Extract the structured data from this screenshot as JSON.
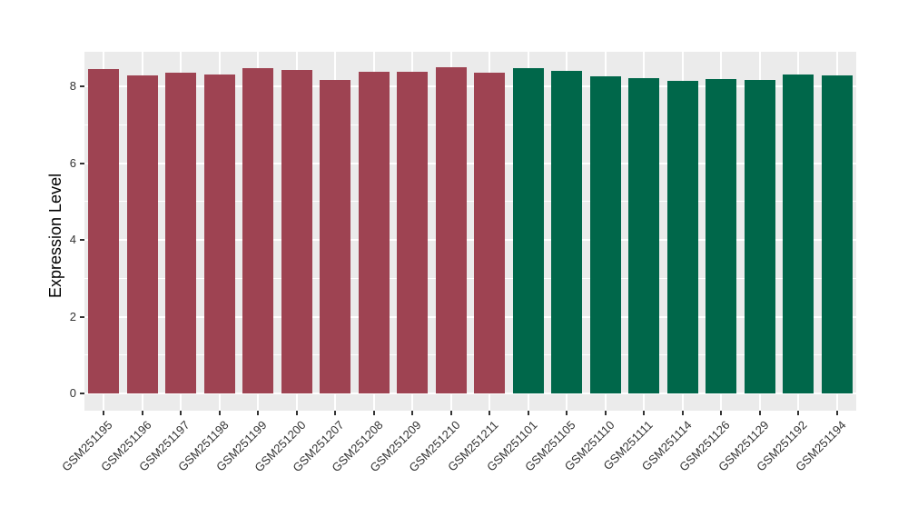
{
  "chart_data": {
    "type": "bar",
    "title": "",
    "xlabel": "",
    "ylabel": "Expression Level",
    "ylim": [
      0,
      8.9
    ],
    "yticks": [
      0,
      2,
      4,
      6,
      8
    ],
    "yticks_minor": [
      1,
      3,
      5,
      7
    ],
    "grid": "on",
    "legend_position": "none",
    "panel_background": "#EBEBEB",
    "gridline_color": "#FFFFFF",
    "axis_text_color": "#333333",
    "categories": [
      "GSM251195",
      "GSM251196",
      "GSM251197",
      "GSM251198",
      "GSM251199",
      "GSM251200",
      "GSM251207",
      "GSM251208",
      "GSM251209",
      "GSM251210",
      "GSM251211",
      "GSM251101",
      "GSM251105",
      "GSM251110",
      "GSM251111",
      "GSM251114",
      "GSM251126",
      "GSM251129",
      "GSM251192",
      "GSM251194"
    ],
    "values": [
      8.45,
      8.28,
      8.35,
      8.31,
      8.48,
      8.42,
      8.16,
      8.37,
      8.38,
      8.49,
      8.36,
      8.47,
      8.4,
      8.27,
      8.22,
      8.14,
      8.2,
      8.16,
      8.31,
      8.29
    ],
    "bar_groups": [
      "maroon",
      "maroon",
      "maroon",
      "maroon",
      "maroon",
      "maroon",
      "maroon",
      "maroon",
      "maroon",
      "maroon",
      "maroon",
      "green",
      "green",
      "green",
      "green",
      "green",
      "green",
      "green",
      "green",
      "green"
    ],
    "group_colors": {
      "maroon": "#9E4352",
      "green": "#00674A"
    }
  }
}
